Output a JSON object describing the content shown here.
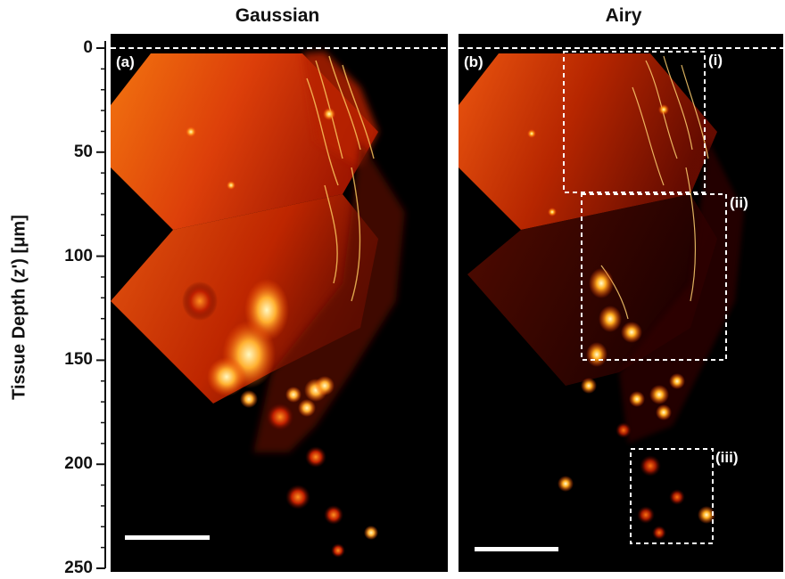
{
  "figure": {
    "left_title": "Gaussian",
    "right_title": "Airy",
    "y_axis_label": "Tissue Depth (z') [μm]",
    "y_axis": {
      "min": 0,
      "max": 250,
      "major_ticks": [
        0,
        50,
        100,
        150,
        200,
        250
      ],
      "minor_step": 10
    },
    "panels": [
      {
        "label": "(a)",
        "title": "Gaussian"
      },
      {
        "label": "(b)",
        "title": "Airy"
      }
    ],
    "regions_of_interest": [
      {
        "label": "(i)",
        "depth_range_um": [
          0,
          67
        ]
      },
      {
        "label": "(ii)",
        "depth_range_um": [
          68,
          145
        ]
      },
      {
        "label": "(iii)",
        "depth_range_um": [
          187,
          242
        ]
      }
    ],
    "colormap": {
      "dark": "#000000",
      "mid": "#d42a00",
      "bright": "#ff8a1a",
      "highlight": "#fff2b0"
    }
  }
}
